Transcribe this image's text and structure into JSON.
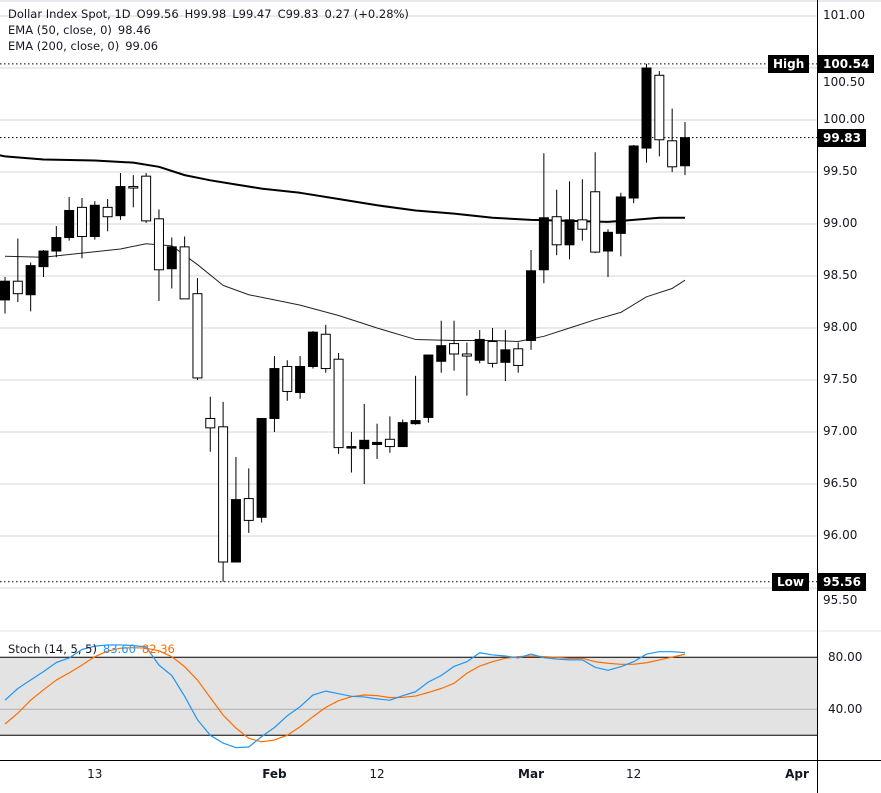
{
  "legend": {
    "symbol": "Dollar Index Spot, 1D",
    "open": "O99.56",
    "high": "H99.98",
    "low": "L99.47",
    "close": "C99.83",
    "change": "0.27 (+0.28%)",
    "ema50_label": "EMA (50, close, 0)",
    "ema50_value": "98.46",
    "ema200_label": "EMA (200, close, 0)",
    "ema200_value": "99.06"
  },
  "markers": {
    "high_label": "High",
    "high_value": "100.54",
    "low_label": "Low",
    "low_value": "95.56",
    "last_price": "99.83"
  },
  "stoch": {
    "label": "Stoch (14, 5, 5)",
    "k_value": "83.60",
    "d_value": "82.36",
    "axis_ticks": [
      "80.00",
      "40.00"
    ]
  },
  "colors": {
    "up_candle": "#000000",
    "down_candle": "#ffffff",
    "stoch_k": "#2196f3",
    "stoch_d": "#ff6d00",
    "stoch_band": "#e3e3e3",
    "grid": "#d6d6d6"
  },
  "chart_data": [
    {
      "type": "candlestick",
      "price_axis_ticks": [
        "101.00",
        "100.50",
        "100.00",
        "99.50",
        "99.00",
        "98.50",
        "98.00",
        "97.50",
        "97.00",
        "96.50",
        "96.00",
        "95.50"
      ],
      "ylim": [
        95.3,
        101.15
      ],
      "time_axis_ticks": [
        {
          "label": "13",
          "index": 7
        },
        {
          "label": "Feb",
          "index": 21
        },
        {
          "label": "12",
          "index": 29
        },
        {
          "label": "Mar",
          "index": 41
        },
        {
          "label": "12",
          "index": 49
        },
        {
          "label": "Apr",
          "index": 62.7
        }
      ],
      "grid": "horizontal",
      "ohlc": [
        [
          98.27,
          98.49,
          98.14,
          98.45
        ],
        [
          98.45,
          98.86,
          98.25,
          98.33
        ],
        [
          98.32,
          98.63,
          98.16,
          98.6
        ],
        [
          98.59,
          98.75,
          98.49,
          98.74
        ],
        [
          98.74,
          98.98,
          98.68,
          98.87
        ],
        [
          98.87,
          99.26,
          98.84,
          99.13
        ],
        [
          99.16,
          99.25,
          98.67,
          98.88
        ],
        [
          98.88,
          99.22,
          98.85,
          99.18
        ],
        [
          99.16,
          99.24,
          98.93,
          99.07
        ],
        [
          99.08,
          99.49,
          99.04,
          99.36
        ],
        [
          99.36,
          99.47,
          99.16,
          99.35
        ],
        [
          99.46,
          99.49,
          99.01,
          99.03
        ],
        [
          99.05,
          99.14,
          98.26,
          98.56
        ],
        [
          98.57,
          98.87,
          98.38,
          98.78
        ],
        [
          98.78,
          98.88,
          98.28,
          98.28
        ],
        [
          98.33,
          98.48,
          97.5,
          97.52
        ],
        [
          97.13,
          97.34,
          96.81,
          97.04
        ],
        [
          97.05,
          97.29,
          95.56,
          95.75
        ],
        [
          95.75,
          96.76,
          95.75,
          96.35
        ],
        [
          96.36,
          96.65,
          96.03,
          96.15
        ],
        [
          96.18,
          97.13,
          96.13,
          97.13
        ],
        [
          97.13,
          97.73,
          97.0,
          97.61
        ],
        [
          97.63,
          97.69,
          97.3,
          97.39
        ],
        [
          97.38,
          97.73,
          97.32,
          97.63
        ],
        [
          97.63,
          97.97,
          97.61,
          97.96
        ],
        [
          97.94,
          98.03,
          97.57,
          97.61
        ],
        [
          97.7,
          97.76,
          96.79,
          96.85
        ],
        [
          96.86,
          97.0,
          96.61,
          96.86
        ],
        [
          96.84,
          97.27,
          96.5,
          96.92
        ],
        [
          96.88,
          97.08,
          96.74,
          96.9
        ],
        [
          96.93,
          97.15,
          96.8,
          96.86
        ],
        [
          96.86,
          97.12,
          96.86,
          97.09
        ],
        [
          97.08,
          97.54,
          97.07,
          97.11
        ],
        [
          97.14,
          97.74,
          97.09,
          97.74
        ],
        [
          97.68,
          98.07,
          97.57,
          97.83
        ],
        [
          97.85,
          98.07,
          97.59,
          97.75
        ],
        [
          97.75,
          97.86,
          97.35,
          97.73
        ],
        [
          97.69,
          97.98,
          97.66,
          97.89
        ],
        [
          97.87,
          98.0,
          97.62,
          97.66
        ],
        [
          97.67,
          97.98,
          97.49,
          97.79
        ],
        [
          97.8,
          97.86,
          97.57,
          97.64
        ],
        [
          97.88,
          98.75,
          97.79,
          98.55
        ],
        [
          98.56,
          99.68,
          98.43,
          99.06
        ],
        [
          99.07,
          99.33,
          98.7,
          98.8
        ],
        [
          98.8,
          99.41,
          98.66,
          99.04
        ],
        [
          99.04,
          99.43,
          98.84,
          98.95
        ],
        [
          99.31,
          99.69,
          98.72,
          98.73
        ],
        [
          98.74,
          98.95,
          98.49,
          98.92
        ],
        [
          98.91,
          99.3,
          98.69,
          99.26
        ],
        [
          99.25,
          99.76,
          99.2,
          99.75
        ],
        [
          99.73,
          100.54,
          99.59,
          100.5
        ],
        [
          100.43,
          100.47,
          99.65,
          99.81
        ],
        [
          99.8,
          100.11,
          99.5,
          99.55
        ],
        [
          99.56,
          99.98,
          99.47,
          99.83
        ]
      ],
      "ema50": [
        [
          0,
          98.69
        ],
        [
          3,
          98.68
        ],
        [
          6,
          98.72
        ],
        [
          9,
          98.76
        ],
        [
          11,
          98.81
        ],
        [
          13,
          98.79
        ],
        [
          15,
          98.61
        ],
        [
          17,
          98.41
        ],
        [
          19,
          98.32
        ],
        [
          21,
          98.27
        ],
        [
          23,
          98.22
        ],
        [
          26,
          98.12
        ],
        [
          29,
          98.0
        ],
        [
          32,
          97.89
        ],
        [
          35,
          97.88
        ],
        [
          38,
          97.88
        ],
        [
          40,
          97.87
        ],
        [
          42,
          97.92
        ],
        [
          44,
          98.0
        ],
        [
          46,
          98.08
        ],
        [
          48,
          98.15
        ],
        [
          50,
          98.3
        ],
        [
          52,
          98.38
        ],
        [
          53,
          98.46
        ]
      ],
      "ema200": [
        [
          -0.4,
          99.66
        ],
        [
          0,
          99.65
        ],
        [
          3,
          99.62
        ],
        [
          7,
          99.61
        ],
        [
          10,
          99.59
        ],
        [
          12,
          99.55
        ],
        [
          14,
          99.47
        ],
        [
          16,
          99.42
        ],
        [
          18,
          99.38
        ],
        [
          20,
          99.34
        ],
        [
          23,
          99.3
        ],
        [
          26,
          99.24
        ],
        [
          29,
          99.18
        ],
        [
          32,
          99.13
        ],
        [
          35,
          99.1
        ],
        [
          38,
          99.06
        ],
        [
          41,
          99.04
        ],
        [
          44,
          99.03
        ],
        [
          47,
          99.02
        ],
        [
          49,
          99.04
        ],
        [
          51,
          99.06
        ],
        [
          53,
          99.06
        ]
      ]
    },
    {
      "type": "line",
      "ylim": [
        0,
        100
      ],
      "band": [
        20,
        80
      ],
      "series": [
        {
          "name": "83.60",
          "values": [
            47,
            56,
            62.5,
            69,
            76,
            79.5,
            86,
            88.6,
            89.5,
            89.5,
            89,
            88,
            74,
            66,
            50,
            32,
            20,
            14,
            10.5,
            11,
            19,
            26,
            35,
            42,
            51,
            54,
            52,
            50,
            49.5,
            48,
            47,
            50.5,
            53.5,
            61,
            66,
            73,
            76.6,
            83.5,
            81.8,
            81,
            79.5,
            82.5,
            79.7,
            78.7,
            78,
            78,
            72.3,
            70,
            72.8,
            76.6,
            82.5,
            84.3,
            84.3,
            83.6
          ]
        },
        {
          "name": "82.36",
          "values": [
            28.7,
            37,
            47,
            55,
            62.5,
            68,
            74,
            80.5,
            84.8,
            87,
            87.4,
            87,
            85,
            80.5,
            72.8,
            62.5,
            49,
            35.6,
            25.6,
            17.7,
            15,
            16.4,
            20,
            26.6,
            34.3,
            41.5,
            46.6,
            49.7,
            51,
            50.5,
            49,
            49.2,
            50.2,
            53,
            56,
            60,
            67.7,
            73.3,
            76.6,
            79.2,
            80.5,
            81,
            80.5,
            80,
            79.2,
            79.2,
            76.6,
            75.4,
            74.6,
            74.6,
            75.8,
            78,
            80.2,
            82.36
          ]
        }
      ]
    }
  ]
}
